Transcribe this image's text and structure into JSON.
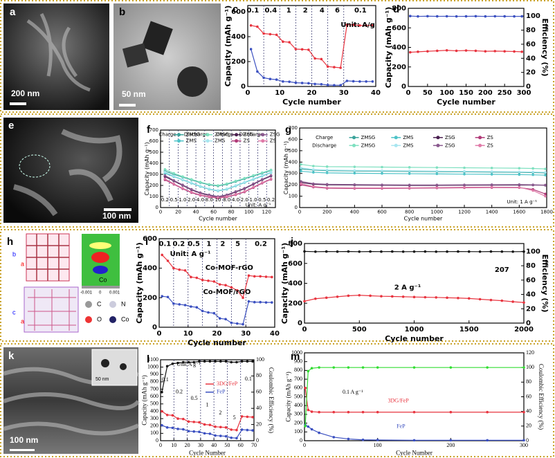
{
  "images": [
    {
      "label": "a",
      "scale_bar": "200 nm"
    },
    {
      "label": "b",
      "scale_bar": "50 nm"
    },
    {
      "label": "e",
      "scale_bar": "100 nm"
    },
    {
      "label": "h",
      "texts": [
        "b",
        "a",
        "c",
        "a",
        "C",
        "N",
        "O",
        "Co",
        "-0.001",
        "0",
        "0.001",
        "Co"
      ]
    },
    {
      "label": "k",
      "scale_bar": "100 nm",
      "inset_scale_bar": "50 nm"
    }
  ],
  "chart_data": [
    {
      "type": "line",
      "panel": "c",
      "xlabel": "Cycle number",
      "ylabel": "Capacity (mAh g⁻¹)",
      "xlim": [
        0,
        40
      ],
      "xticks": [
        0,
        10,
        20,
        30,
        40
      ],
      "ylim": [
        0,
        650
      ],
      "yticks": [
        0,
        200,
        400,
        600
      ],
      "dividers": [
        5,
        10,
        15,
        20,
        25,
        30
      ],
      "annotations": [
        "0.1",
        "0.4",
        "1",
        "2",
        "4",
        "6",
        "0.1",
        "Unit: A/g"
      ],
      "x": [
        1,
        3,
        5,
        7,
        9,
        11,
        13,
        15,
        17,
        19,
        21,
        23,
        25,
        27,
        29,
        31,
        33,
        35,
        37,
        39
      ],
      "series": [
        {
          "color": "#e8343f",
          "values": [
            490,
            480,
            425,
            420,
            415,
            360,
            355,
            300,
            298,
            295,
            225,
            220,
            160,
            155,
            150,
            495,
            495,
            490,
            490,
            490
          ]
        },
        {
          "color": "#3a4fc0",
          "values": [
            300,
            120,
            70,
            60,
            55,
            40,
            38,
            30,
            28,
            26,
            20,
            18,
            12,
            10,
            10,
            45,
            42,
            40,
            40,
            40
          ]
        }
      ]
    },
    {
      "type": "line",
      "panel": "d",
      "xlabel": "Cycle number",
      "ylabel": "Capacity (mAh g⁻¹)",
      "y2label": "Efficiency (%)",
      "xlim": [
        0,
        300
      ],
      "xticks": [
        0,
        50,
        100,
        150,
        200,
        250,
        300
      ],
      "ylim": [
        0,
        800
      ],
      "yticks": [
        0,
        200,
        400,
        600,
        800
      ],
      "y2lim": [
        0,
        111
      ],
      "y2ticks": [
        0,
        20,
        40,
        60,
        80,
        100
      ],
      "x": [
        5,
        25,
        50,
        75,
        100,
        125,
        150,
        175,
        200,
        225,
        250,
        275,
        295
      ],
      "series": [
        {
          "color": "#e8343f",
          "values": [
            350,
            355,
            360,
            365,
            370,
            365,
            368,
            365,
            360,
            362,
            360,
            358,
            355
          ]
        },
        {
          "color": "#3a4fc0",
          "axis": "y2",
          "values": [
            100,
            99.5,
            99.8,
            99.6,
            99.7,
            99.5,
            99.6,
            99.8,
            99.5,
            99.7,
            99.6,
            99.5,
            99.6
          ]
        }
      ]
    },
    {
      "type": "line",
      "panel": "f",
      "xlabel": "Cycle number",
      "ylabel": "Capacity (mAh g⁻¹)",
      "xlim": [
        0,
        130
      ],
      "xticks": [
        0,
        20,
        40,
        60,
        80,
        100,
        120
      ],
      "ylim": [
        0,
        700
      ],
      "yticks": [
        0,
        100,
        200,
        300,
        400,
        500,
        600,
        700
      ],
      "dividers": [
        10,
        20,
        30,
        40,
        50,
        60,
        70,
        80,
        90,
        100,
        110,
        120
      ],
      "annotations": [
        "0.2",
        "0.5",
        "1.0",
        "2.0",
        "4.0",
        "8.0",
        "10",
        "8.0",
        "4.0",
        "2.0",
        "1.0",
        "0.5",
        "0.2",
        "Unit: A g⁻¹"
      ],
      "legend_groups": [
        "Charge",
        "Discharge",
        "Charge",
        "Discharge"
      ],
      "x": [
        5,
        15,
        25,
        35,
        45,
        55,
        65,
        75,
        85,
        95,
        105,
        115,
        125
      ],
      "series": [
        {
          "name": "ZMSG",
          "color": "#3aa39a",
          "values": [
            330,
            300,
            275,
            250,
            225,
            205,
            195,
            210,
            235,
            260,
            285,
            310,
            335
          ]
        },
        {
          "name": "ZMS",
          "color": "#4ec3c8",
          "values": [
            310,
            280,
            250,
            220,
            190,
            165,
            150,
            165,
            195,
            225,
            255,
            285,
            315
          ]
        },
        {
          "name": "ZMSG",
          "color": "#7fe0c0",
          "values": [
            345,
            310,
            280,
            255,
            230,
            210,
            200,
            215,
            240,
            265,
            290,
            315,
            340
          ]
        },
        {
          "name": "ZMS",
          "color": "#a8e6f0",
          "values": [
            320,
            285,
            255,
            225,
            195,
            170,
            155,
            170,
            200,
            230,
            260,
            290,
            320
          ]
        },
        {
          "name": "ZSG",
          "color": "#4a2050",
          "values": [
            280,
            240,
            200,
            160,
            130,
            110,
            95,
            110,
            140,
            170,
            210,
            250,
            285
          ]
        },
        {
          "name": "ZS",
          "color": "#b03a78",
          "values": [
            250,
            210,
            170,
            135,
            110,
            95,
            85,
            95,
            115,
            140,
            180,
            220,
            255
          ]
        },
        {
          "name": "ZSG",
          "color": "#8a5a8f",
          "values": [
            290,
            245,
            205,
            165,
            135,
            115,
            100,
            115,
            145,
            175,
            215,
            255,
            290
          ]
        },
        {
          "name": "ZS",
          "color": "#e07aa8",
          "values": [
            260,
            215,
            175,
            140,
            115,
            100,
            90,
            100,
            120,
            145,
            185,
            225,
            260
          ]
        }
      ]
    },
    {
      "type": "line",
      "panel": "g",
      "xlabel": "Cycle number",
      "ylabel": "Capacity (mAh g⁻¹)",
      "xlim": [
        0,
        1800
      ],
      "xticks": [
        0,
        200,
        400,
        600,
        800,
        1000,
        1200,
        1400,
        1600,
        1800
      ],
      "ylim": [
        0,
        700
      ],
      "yticks": [
        0,
        100,
        200,
        300,
        400,
        500,
        600,
        700
      ],
      "annotations": [
        "Unit: 1 A g⁻¹"
      ],
      "legend_groups": [
        "Charge",
        "Discharge"
      ],
      "x": [
        10,
        100,
        200,
        400,
        600,
        800,
        1000,
        1200,
        1400,
        1600,
        1700,
        1790
      ],
      "series": [
        {
          "name": "ZMSG",
          "color": "#3aa39a",
          "values": [
            340,
            330,
            325,
            322,
            320,
            318,
            316,
            314,
            312,
            310,
            308,
            305
          ]
        },
        {
          "name": "ZMS",
          "color": "#4ec3c8",
          "values": [
            320,
            310,
            305,
            302,
            300,
            298,
            296,
            294,
            292,
            290,
            288,
            285
          ]
        },
        {
          "name": "ZSG",
          "color": "#4a2050",
          "values": [
            220,
            205,
            200,
            198,
            196,
            195,
            195,
            196,
            197,
            198,
            198,
            196
          ]
        },
        {
          "name": "ZS",
          "color": "#b03a78",
          "values": [
            200,
            180,
            170,
            168,
            168,
            170,
            172,
            174,
            176,
            175,
            160,
            120
          ]
        },
        {
          "name": "ZMSG",
          "color": "#7fe0c0",
          "values": [
            380,
            365,
            360,
            358,
            356,
            354,
            352,
            350,
            348,
            346,
            344,
            340
          ]
        },
        {
          "name": "ZMS",
          "color": "#a8e6f0",
          "values": [
            350,
            335,
            330,
            327,
            325,
            323,
            321,
            319,
            317,
            315,
            313,
            310
          ]
        },
        {
          "name": "ZSG",
          "color": "#8a5a8f",
          "values": [
            230,
            210,
            205,
            202,
            200,
            199,
            199,
            200,
            201,
            202,
            200,
            198
          ]
        },
        {
          "name": "ZS",
          "color": "#e07aa8",
          "values": [
            210,
            185,
            175,
            172,
            172,
            174,
            176,
            178,
            180,
            178,
            150,
            100
          ]
        }
      ]
    },
    {
      "type": "line",
      "panel": "i",
      "xlabel": "Cycle number",
      "ylabel": "Capacity (mAh g⁻¹)",
      "xlim": [
        0,
        40
      ],
      "xticks": [
        0,
        10,
        20,
        30,
        40
      ],
      "ylim": [
        0,
        600
      ],
      "yticks": [
        0,
        200,
        400,
        600
      ],
      "dividers": [
        5,
        10,
        15,
        20,
        25,
        30
      ],
      "annotations": [
        "0.1",
        "0.2",
        "0.5",
        "1",
        "2",
        "5",
        "0.2",
        "Unit: A g⁻¹"
      ],
      "x": [
        1,
        3,
        5,
        7,
        9,
        11,
        13,
        15,
        17,
        19,
        21,
        23,
        25,
        27,
        29,
        31,
        33,
        35,
        37,
        39
      ],
      "series": [
        {
          "name": "Co-MOF-rGO",
          "color": "#e8343f",
          "values": [
            490,
            450,
            400,
            390,
            385,
            340,
            335,
            320,
            315,
            310,
            290,
            285,
            270,
            250,
            200,
            350,
            345,
            345,
            342,
            340
          ]
        },
        {
          "name": "Co-MOF/rGO",
          "color": "#3a4fc0",
          "values": [
            210,
            205,
            160,
            155,
            150,
            140,
            135,
            110,
            100,
            95,
            60,
            55,
            30,
            25,
            20,
            175,
            170,
            170,
            168,
            168
          ]
        }
      ]
    },
    {
      "type": "line",
      "panel": "j",
      "xlabel": "Cycle number",
      "ylabel": "Capacity (mAh g⁻¹)",
      "y2label": "Efficiency (%)",
      "xlim": [
        0,
        2000
      ],
      "xticks": [
        0,
        500,
        1000,
        1500,
        2000
      ],
      "ylim": [
        0,
        800
      ],
      "yticks": [
        0,
        200,
        400,
        600,
        800
      ],
      "y2lim": [
        0,
        111
      ],
      "y2ticks": [
        0,
        20,
        40,
        60,
        80,
        100
      ],
      "annotations": [
        "2 A g⁻¹",
        "207"
      ],
      "x": [
        0,
        100,
        200,
        300,
        400,
        500,
        600,
        700,
        800,
        900,
        1000,
        1100,
        1200,
        1300,
        1400,
        1500,
        1600,
        1700,
        1800,
        1900,
        2000
      ],
      "series": [
        {
          "color": "#e8343f",
          "values": [
            220,
            245,
            255,
            265,
            275,
            280,
            275,
            270,
            268,
            265,
            262,
            260,
            258,
            255,
            252,
            248,
            240,
            232,
            225,
            215,
            207
          ]
        },
        {
          "color": "#111111",
          "axis": "y2",
          "values": [
            100,
            99.6,
            99.8,
            99.7,
            99.9,
            99.6,
            99.8,
            99.7,
            99.8,
            99.6,
            99.7,
            99.8,
            99.6,
            99.7,
            99.8,
            99.7,
            99.6,
            99.8,
            99.7,
            99.6,
            99.7
          ]
        }
      ]
    },
    {
      "type": "line",
      "panel": "l",
      "xlabel": "Cycle Number",
      "ylabel": "Capacity (mAh g⁻¹)",
      "y2label": "Coulombic Efficiency (%)",
      "xlim": [
        0,
        70
      ],
      "xticks": [
        0,
        10,
        20,
        30,
        40,
        50,
        60,
        70
      ],
      "ylim": [
        0,
        1100
      ],
      "yticks": [
        0,
        100,
        200,
        300,
        400,
        500,
        600,
        700,
        800,
        900,
        1000,
        1100
      ],
      "y2lim": [
        0,
        100
      ],
      "y2ticks": [
        0,
        20,
        40,
        60,
        80,
        100
      ],
      "dividers": [
        10,
        20,
        30,
        40,
        50,
        60
      ],
      "annotations": [
        "Unit:A g⁻¹",
        "0.1",
        "0.2",
        "0.5",
        "1",
        "2",
        "5",
        "0.1"
      ],
      "x": [
        1,
        5,
        9,
        13,
        17,
        21,
        25,
        29,
        33,
        37,
        41,
        45,
        49,
        53,
        57,
        61,
        65,
        69
      ],
      "series": [
        {
          "name": "3DG/FeP",
          "color": "#e8343f",
          "values": [
            400,
            350,
            345,
            300,
            295,
            260,
            255,
            250,
            220,
            215,
            190,
            185,
            180,
            150,
            145,
            330,
            325,
            320
          ]
        },
        {
          "name": "FeP",
          "color": "#3a4fc0",
          "values": [
            210,
            180,
            175,
            160,
            155,
            130,
            125,
            120,
            100,
            95,
            70,
            65,
            60,
            40,
            35,
            150,
            145,
            140
          ]
        },
        {
          "color": "#111111",
          "axis": "y2",
          "values": [
            60,
            92,
            95,
            96,
            97,
            97,
            97,
            98,
            98,
            98,
            98,
            98,
            98,
            97,
            97,
            98,
            98,
            98
          ]
        }
      ]
    },
    {
      "type": "line",
      "panel": "m",
      "xlabel": "Cycle Number",
      "ylabel": "Capacity (mAh g⁻¹)",
      "y2label": "Coulombic Efficiency (%)",
      "xlim": [
        0,
        300
      ],
      "xticks": [
        0,
        100,
        200,
        300
      ],
      "ylim": [
        0,
        1000
      ],
      "yticks": [
        0,
        100,
        200,
        300,
        400,
        500,
        600,
        700,
        800,
        900,
        1000
      ],
      "y2lim": [
        0,
        120
      ],
      "y2ticks": [
        0,
        20,
        40,
        60,
        80,
        100,
        120
      ],
      "annotations": [
        "0.1 A g⁻¹"
      ],
      "x": [
        1,
        5,
        10,
        20,
        40,
        60,
        80,
        100,
        150,
        200,
        250,
        300
      ],
      "series": [
        {
          "name": "3DG/FeP",
          "color": "#e8343f",
          "values": [
            600,
            350,
            330,
            325,
            325,
            325,
            325,
            325,
            325,
            325,
            325,
            325
          ]
        },
        {
          "name": "FeP",
          "color": "#3a4fc0",
          "values": [
            180,
            160,
            130,
            90,
            40,
            20,
            10,
            8,
            5,
            5,
            5,
            5
          ]
        },
        {
          "color": "#33dd33",
          "axis": "y2",
          "values": [
            20,
            95,
            99,
            100,
            100,
            100,
            100,
            100,
            100,
            100,
            100,
            100
          ]
        }
      ]
    }
  ]
}
